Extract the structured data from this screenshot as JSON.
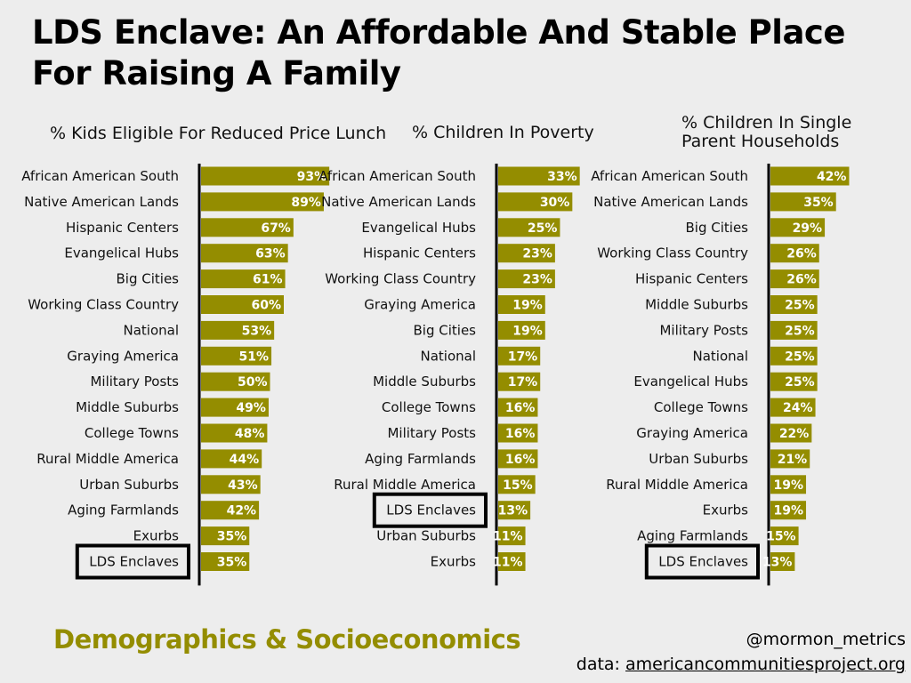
{
  "title": "LDS Enclave: An Affordable And Stable Place For Raising A Family",
  "footer": {
    "section": "Demographics & Socioeconomics",
    "handle": "@mormon_metrics",
    "source_prefix": "data: ",
    "source_link": "americancommunitiesproject.org"
  },
  "colors": {
    "bar": "#948d00",
    "highlight_box": "#000000",
    "background": "#ededed"
  },
  "chart_data": [
    {
      "type": "bar",
      "orientation": "horizontal",
      "title": [
        "% Kids Eligible For Reduced Price Lunch"
      ],
      "categories": [
        "African American South",
        "Native American Lands",
        "Hispanic Centers",
        "Evangelical Hubs",
        "Big Cities",
        "Working Class Country",
        "National",
        "Graying America",
        "Military Posts",
        "Middle Suburbs",
        "College Towns",
        "Rural Middle America",
        "Urban Suburbs",
        "Aging Farmlands",
        "Exurbs",
        "LDS Enclaves"
      ],
      "values": [
        93,
        89,
        67,
        63,
        61,
        60,
        53,
        51,
        50,
        49,
        48,
        44,
        43,
        42,
        35,
        35
      ],
      "highlight": "LDS Enclaves",
      "unit": "%",
      "xlim": [
        0,
        100
      ]
    },
    {
      "type": "bar",
      "orientation": "horizontal",
      "title": [
        "% Children In Poverty"
      ],
      "categories": [
        "African American South",
        "Native American Lands",
        "Evangelical Hubs",
        "Hispanic Centers",
        "Working Class Country",
        "Graying America",
        "Big Cities",
        "National",
        "Middle Suburbs",
        "College Towns",
        "Military Posts",
        "Aging Farmlands",
        "Rural Middle America",
        "LDS Enclaves",
        "Urban Suburbs",
        "Exurbs"
      ],
      "values": [
        33,
        30,
        25,
        23,
        23,
        19,
        19,
        17,
        17,
        16,
        16,
        16,
        15,
        13,
        11,
        11
      ],
      "highlight": "LDS Enclaves",
      "unit": "%",
      "xlim": [
        0,
        36
      ]
    },
    {
      "type": "bar",
      "orientation": "horizontal",
      "title": [
        "% Children In Single",
        "Parent Households"
      ],
      "categories": [
        "African American South",
        "Native American Lands",
        "Big Cities",
        "Working Class Country",
        "Hispanic Centers",
        "Middle Suburbs",
        "Military Posts",
        "National",
        "Evangelical Hubs",
        "College Towns",
        "Graying America",
        "Urban Suburbs",
        "Rural Middle America",
        "Exurbs",
        "Aging Farmlands",
        "LDS Enclaves"
      ],
      "values": [
        42,
        35,
        29,
        26,
        26,
        25,
        25,
        25,
        25,
        24,
        22,
        21,
        19,
        19,
        15,
        13
      ],
      "highlight": "LDS Enclaves",
      "unit": "%",
      "xlim": [
        0,
        47
      ]
    }
  ]
}
